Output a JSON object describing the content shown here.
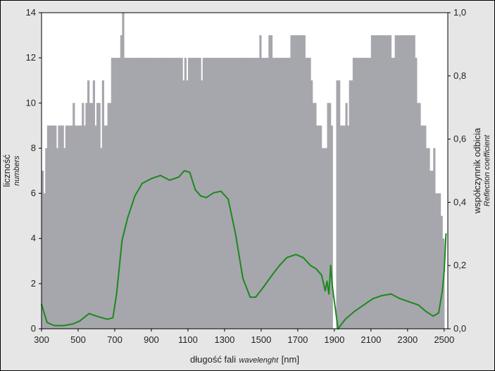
{
  "chart_data": {
    "type": "bar+line",
    "x_axis": {
      "label_main": "długość fali",
      "label_sub": "wavelenght",
      "label_unit": "[nm]",
      "range": [
        300,
        2520
      ],
      "ticks": [
        300,
        500,
        700,
        900,
        1100,
        1300,
        1500,
        1700,
        1900,
        2100,
        2300,
        2500
      ],
      "tick_labels": [
        "300",
        "500",
        "700",
        "900",
        "1100",
        "1300",
        "1500",
        "1700",
        "1900",
        "2100",
        "2300",
        "2500"
      ]
    },
    "y_left": {
      "label_main": "liczność",
      "label_sub": "numbers",
      "range": [
        0,
        14
      ],
      "ticks": [
        0,
        2,
        4,
        6,
        8,
        10,
        12,
        14
      ],
      "tick_labels": [
        "0",
        "2",
        "4",
        "6",
        "8",
        "10",
        "12",
        "14"
      ]
    },
    "y_right": {
      "label_main": "współczynnik odbicia",
      "label_sub": "Reflection coefficient",
      "range": [
        0,
        1
      ],
      "ticks": [
        0,
        0.2,
        0.4,
        0.6,
        0.8,
        1.0
      ],
      "tick_labels": [
        "0,0",
        "0,2",
        "0,4",
        "0,6",
        "0,8",
        "1,0"
      ]
    },
    "histogram": {
      "name": "liczność",
      "color": "#a6a6ad",
      "bin_width": 10,
      "steps": [
        [
          300,
          7
        ],
        [
          310,
          6
        ],
        [
          315,
          7
        ],
        [
          320,
          8
        ],
        [
          330,
          9
        ],
        [
          380,
          8
        ],
        [
          390,
          9
        ],
        [
          420,
          8
        ],
        [
          430,
          9
        ],
        [
          470,
          10
        ],
        [
          480,
          9
        ],
        [
          520,
          10
        ],
        [
          530,
          9
        ],
        [
          540,
          10
        ],
        [
          550,
          11
        ],
        [
          560,
          10
        ],
        [
          580,
          11
        ],
        [
          590,
          9
        ],
        [
          600,
          10
        ],
        [
          620,
          8
        ],
        [
          630,
          11
        ],
        [
          640,
          9
        ],
        [
          660,
          10
        ],
        [
          680,
          12
        ],
        [
          730,
          13
        ],
        [
          740,
          14
        ],
        [
          750,
          12
        ],
        [
          1070,
          11
        ],
        [
          1080,
          12
        ],
        [
          1090,
          11
        ],
        [
          1100,
          12
        ],
        [
          1170,
          11
        ],
        [
          1180,
          12
        ],
        [
          1460,
          12
        ],
        [
          1490,
          13
        ],
        [
          1500,
          12
        ],
        [
          1540,
          13
        ],
        [
          1560,
          12
        ],
        [
          1660,
          13
        ],
        [
          1740,
          12
        ],
        [
          1770,
          11
        ],
        [
          1780,
          10
        ],
        [
          1800,
          9
        ],
        [
          1830,
          8
        ],
        [
          1860,
          10
        ],
        [
          1880,
          9
        ],
        [
          1890,
          0
        ],
        [
          1910,
          11
        ],
        [
          1930,
          9
        ],
        [
          1960,
          10
        ],
        [
          1970,
          9
        ],
        [
          1980,
          11
        ],
        [
          2000,
          12
        ],
        [
          2100,
          13
        ],
        [
          2210,
          12
        ],
        [
          2230,
          13
        ],
        [
          2340,
          12
        ],
        [
          2350,
          10
        ],
        [
          2370,
          9
        ],
        [
          2400,
          8
        ],
        [
          2420,
          7
        ],
        [
          2440,
          8
        ],
        [
          2450,
          6
        ],
        [
          2480,
          5
        ],
        [
          2490,
          4
        ],
        [
          2500,
          0
        ]
      ]
    },
    "line": {
      "name": "współczynnik odbicia",
      "color": "#1b8a1b",
      "points": [
        [
          300,
          0.077
        ],
        [
          330,
          0.02
        ],
        [
          370,
          0.01
        ],
        [
          420,
          0.01
        ],
        [
          470,
          0.015
        ],
        [
          510,
          0.025
        ],
        [
          560,
          0.048
        ],
        [
          600,
          0.04
        ],
        [
          660,
          0.03
        ],
        [
          690,
          0.035
        ],
        [
          710,
          0.11
        ],
        [
          740,
          0.28
        ],
        [
          770,
          0.35
        ],
        [
          810,
          0.42
        ],
        [
          850,
          0.46
        ],
        [
          900,
          0.475
        ],
        [
          950,
          0.485
        ],
        [
          1000,
          0.47
        ],
        [
          1050,
          0.48
        ],
        [
          1080,
          0.5
        ],
        [
          1110,
          0.495
        ],
        [
          1140,
          0.44
        ],
        [
          1170,
          0.42
        ],
        [
          1200,
          0.415
        ],
        [
          1240,
          0.43
        ],
        [
          1280,
          0.435
        ],
        [
          1320,
          0.41
        ],
        [
          1360,
          0.3
        ],
        [
          1400,
          0.16
        ],
        [
          1440,
          0.1
        ],
        [
          1470,
          0.1
        ],
        [
          1510,
          0.13
        ],
        [
          1560,
          0.17
        ],
        [
          1600,
          0.2
        ],
        [
          1640,
          0.225
        ],
        [
          1690,
          0.235
        ],
        [
          1730,
          0.225
        ],
        [
          1770,
          0.2
        ],
        [
          1800,
          0.19
        ],
        [
          1830,
          0.17
        ],
        [
          1850,
          0.12
        ],
        [
          1860,
          0.15
        ],
        [
          1870,
          0.11
        ],
        [
          1880,
          0.2
        ],
        [
          1890,
          0.13
        ],
        [
          1920,
          0.0
        ],
        [
          1960,
          0.03
        ],
        [
          2010,
          0.055
        ],
        [
          2060,
          0.075
        ],
        [
          2110,
          0.095
        ],
        [
          2160,
          0.105
        ],
        [
          2210,
          0.11
        ],
        [
          2260,
          0.095
        ],
        [
          2310,
          0.085
        ],
        [
          2360,
          0.075
        ],
        [
          2400,
          0.055
        ],
        [
          2440,
          0.04
        ],
        [
          2470,
          0.05
        ],
        [
          2490,
          0.12
        ],
        [
          2500,
          0.18
        ],
        [
          2510,
          0.3
        ]
      ]
    }
  }
}
